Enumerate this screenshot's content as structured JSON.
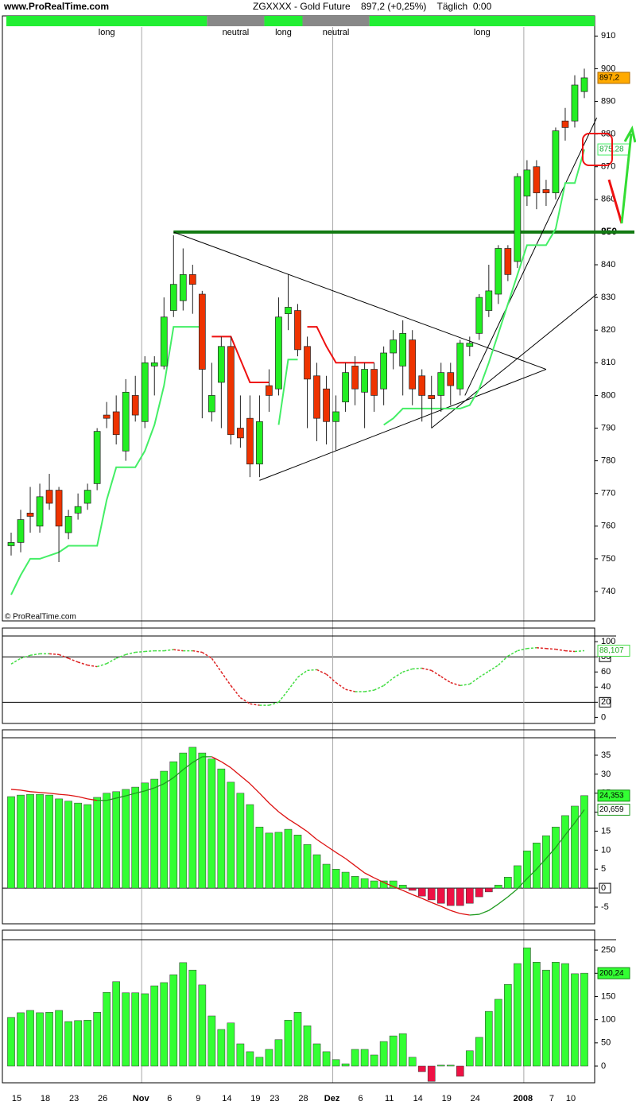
{
  "chart_data": [
    {
      "type": "candlestick",
      "source": "www.ProRealTime.com",
      "title": "ZGXXXX - Gold Future    897,2 (+0,25%)    Täglich  0:00",
      "watermark": "© ProRealTime.com",
      "up_color": "#22ee22",
      "down_color": "#ee3300",
      "tag_color": "#ffaa00",
      "open": [
        754,
        755,
        764,
        760,
        771,
        771,
        758,
        764,
        767,
        773,
        794,
        795,
        783,
        800,
        792,
        809,
        809,
        826,
        829,
        837,
        831,
        795,
        804,
        815,
        790,
        793,
        779,
        803,
        802,
        825,
        826,
        815,
        806,
        802,
        792,
        798,
        809,
        801,
        808,
        802,
        813,
        809,
        817,
        806,
        800,
        800,
        807,
        802,
        815,
        819,
        826,
        831,
        845,
        841,
        861,
        870,
        863,
        862,
        884,
        884,
        893
      ],
      "high": [
        758,
        765,
        772,
        773,
        776,
        772,
        765,
        770,
        773,
        790,
        798,
        800,
        805,
        806,
        812,
        812,
        830,
        849,
        845,
        840,
        832,
        810,
        818,
        818,
        800,
        800,
        800,
        808,
        830,
        837,
        828,
        818,
        810,
        806,
        800,
        810,
        812,
        810,
        810,
        815,
        820,
        823,
        820,
        808,
        806,
        810,
        810,
        817,
        818,
        831,
        840,
        846,
        846,
        868,
        872,
        872,
        866,
        882,
        888,
        898,
        900
      ],
      "low": [
        751,
        752,
        758,
        758,
        765,
        749,
        756,
        762,
        765,
        771,
        790,
        785,
        780,
        792,
        790,
        800,
        808,
        824,
        826,
        825,
        793,
        792,
        790,
        785,
        784,
        775,
        775,
        795,
        800,
        820,
        812,
        790,
        786,
        785,
        783,
        795,
        797,
        790,
        795,
        797,
        808,
        800,
        797,
        792,
        790,
        795,
        797,
        800,
        812,
        817,
        824,
        828,
        835,
        839,
        858,
        857,
        858,
        860,
        878,
        882,
        891
      ],
      "close": [
        755,
        762,
        763,
        769,
        767,
        760,
        763,
        766,
        771,
        789,
        793,
        788,
        801,
        794,
        810,
        810,
        824,
        834,
        837,
        834,
        808,
        800,
        815,
        788,
        787,
        779,
        792,
        800,
        824,
        827,
        814,
        805,
        793,
        792,
        795,
        807,
        802,
        808,
        800,
        813,
        817,
        819,
        802,
        800,
        799,
        807,
        803,
        816,
        816,
        830,
        832,
        845,
        837,
        867,
        869,
        862,
        862,
        881,
        882,
        895,
        897.2
      ],
      "value_labels": [
        null,
        null,
        null,
        null,
        null,
        null,
        null,
        null,
        null,
        null,
        null,
        null,
        null,
        null,
        null,
        null,
        null,
        null,
        null,
        null,
        null,
        null,
        null,
        null,
        null,
        null,
        null,
        null,
        null,
        null,
        null,
        null,
        null,
        null,
        null,
        null,
        null,
        null,
        null,
        null,
        null,
        null,
        null,
        null,
        null,
        null,
        null,
        null,
        null,
        null,
        null,
        null,
        null,
        null,
        null,
        null,
        null,
        null,
        null,
        null,
        "897,2"
      ],
      "series": [
        {
          "color": "#44ee66",
          "values": [
            739,
            745,
            750,
            750,
            751,
            752,
            754,
            754,
            754,
            754,
            768,
            778,
            778,
            778,
            783,
            791,
            803,
            821,
            821,
            821,
            821,
            null,
            null,
            null,
            null,
            null,
            null,
            null,
            791,
            811,
            811,
            null,
            null,
            null,
            null,
            null,
            null,
            null,
            null,
            791,
            793,
            796,
            796,
            796,
            796,
            796,
            796,
            796,
            797,
            802,
            810,
            819,
            828,
            837,
            846,
            846,
            846,
            851,
            865,
            865,
            875.28
          ],
          "value_labels": [
            null,
            null,
            null,
            null,
            null,
            null,
            null,
            null,
            null,
            null,
            null,
            null,
            null,
            null,
            null,
            null,
            null,
            null,
            null,
            null,
            null,
            null,
            null,
            null,
            null,
            null,
            null,
            null,
            null,
            null,
            null,
            null,
            null,
            null,
            null,
            null,
            null,
            null,
            null,
            null,
            null,
            null,
            null,
            null,
            null,
            null,
            null,
            null,
            null,
            null,
            null,
            null,
            null,
            null,
            null,
            null,
            null,
            null,
            null,
            null,
            "875,28"
          ]
        },
        {
          "color": "#ee1111",
          "values": [
            null,
            null,
            null,
            null,
            null,
            null,
            null,
            null,
            null,
            null,
            null,
            null,
            null,
            null,
            null,
            null,
            null,
            null,
            null,
            null,
            null,
            818,
            818,
            818,
            811,
            804,
            804,
            804,
            null,
            null,
            null,
            821,
            821,
            815,
            810,
            810,
            810,
            810,
            810,
            null,
            null,
            null,
            null,
            null,
            null,
            null,
            null,
            null,
            null,
            null,
            null,
            null,
            null,
            null,
            null,
            null,
            null,
            null,
            null,
            null,
            null
          ]
        }
      ],
      "lines": [
        {
          "x": [
            17,
            56
          ],
          "y": [
            850,
            808
          ]
        },
        {
          "x": [
            26,
            56
          ],
          "y": [
            774,
            808
          ]
        },
        {
          "x": [
            44,
            61.3
          ],
          "y": [
            790,
            831
          ]
        },
        {
          "x": [
            47.5,
            61.3
          ],
          "y": [
            800,
            885
          ]
        }
      ],
      "line_color": "#000000",
      "hline": {
        "value": 850,
        "from": 17,
        "color": "#127a12"
      },
      "regimes": [
        {
          "label": "long",
          "start": 0,
          "color": "#22ee33"
        },
        {
          "label": "neutral",
          "start": 21,
          "color": "#888888"
        },
        {
          "label": "long",
          "start": 27,
          "color": "#22ee33"
        },
        {
          "label": "neutral",
          "start": 31,
          "color": "#888888"
        },
        {
          "label": "long",
          "start": 38,
          "color": "#22ee33"
        }
      ],
      "ylim": [
        731,
        913
      ],
      "yticks": [
        740,
        750,
        760,
        770,
        780,
        790,
        800,
        810,
        820,
        830,
        840,
        850,
        860,
        870,
        880,
        890,
        900,
        910
      ]
    },
    {
      "type": "line",
      "dashed": true,
      "color_up": "#44dd44",
      "color_down": "#dd2222",
      "values": [
        70.5,
        78,
        82,
        84,
        84,
        83,
        78,
        73,
        69,
        67,
        71,
        78,
        83,
        86,
        87,
        88,
        88,
        89.5,
        88,
        88,
        86,
        78,
        60,
        42,
        26,
        18,
        16,
        16,
        20,
        36,
        53,
        62,
        63,
        57,
        46,
        37,
        34,
        34,
        36,
        42,
        52,
        60,
        64,
        65,
        62,
        54,
        46,
        42,
        44,
        53,
        61,
        69,
        81,
        88,
        91,
        92,
        91,
        90,
        88,
        87,
        88.107
      ],
      "value_labels": [
        null,
        null,
        null,
        null,
        null,
        null,
        null,
        null,
        null,
        null,
        null,
        null,
        null,
        null,
        null,
        null,
        null,
        null,
        null,
        null,
        null,
        null,
        null,
        null,
        null,
        null,
        null,
        null,
        null,
        null,
        null,
        null,
        null,
        null,
        null,
        null,
        null,
        null,
        null,
        null,
        null,
        null,
        null,
        null,
        null,
        null,
        null,
        null,
        null,
        null,
        null,
        null,
        null,
        null,
        null,
        null,
        null,
        null,
        null,
        null,
        "88,107"
      ],
      "hlines": [
        80,
        20
      ],
      "ylim": [
        -8,
        118
      ],
      "yticks": [
        0,
        20,
        40,
        60,
        80,
        100
      ]
    },
    {
      "type": "bar",
      "color_pos": "#33ff33",
      "color_neg": "#ee1144",
      "values": [
        24.1,
        24.5,
        24.7,
        24.7,
        24.5,
        23.5,
        22.9,
        22.4,
        22,
        23.9,
        25,
        25.4,
        26,
        26.6,
        27.7,
        28.7,
        30.8,
        33.3,
        35.6,
        37.1,
        35.6,
        34,
        31.4,
        27.9,
        25,
        22,
        16.1,
        14.5,
        14.7,
        15.5,
        14,
        11.5,
        8.8,
        6.3,
        5,
        4.2,
        3.1,
        2.5,
        1.9,
        1.9,
        1.9,
        0.8,
        -0.6,
        -2.1,
        -3.1,
        -4,
        -4.6,
        -4.6,
        -4,
        -2.3,
        -1,
        0.8,
        2.9,
        5.9,
        9.8,
        11.9,
        13.8,
        16.1,
        19.1,
        21.6,
        24.353
      ],
      "value_labels": [
        null,
        null,
        null,
        null,
        null,
        null,
        null,
        null,
        null,
        null,
        null,
        null,
        null,
        null,
        null,
        null,
        null,
        null,
        null,
        null,
        null,
        null,
        null,
        null,
        null,
        null,
        null,
        null,
        null,
        null,
        null,
        null,
        null,
        null,
        null,
        null,
        null,
        null,
        null,
        null,
        null,
        null,
        null,
        null,
        null,
        null,
        null,
        null,
        null,
        null,
        null,
        null,
        null,
        null,
        null,
        null,
        null,
        null,
        null,
        null,
        "24,353"
      ],
      "series": [
        {
          "color_up": "#1f9a1f",
          "color_down": "#dd1111",
          "values": [
            26,
            25.8,
            25.4,
            25.2,
            25,
            24.7,
            24.5,
            24.1,
            23.5,
            23.1,
            23.1,
            23.7,
            24.3,
            25,
            25.6,
            26.4,
            27.5,
            29.1,
            31.2,
            33.1,
            34.6,
            34.6,
            33.3,
            31.7,
            29.6,
            27.5,
            25,
            22.4,
            20.1,
            18.2,
            16.6,
            14.9,
            12.8,
            11.1,
            9.4,
            7.8,
            5.9,
            4,
            2.7,
            1.5,
            0.4,
            -0.6,
            -1.7,
            -2.7,
            -3.8,
            -4.8,
            -5.9,
            -6.7,
            -7.1,
            -6.9,
            -5.9,
            -4.2,
            -2.3,
            -0.2,
            2.5,
            5,
            7.8,
            10.7,
            14,
            17.2,
            20.659
          ],
          "value_labels": [
            null,
            null,
            null,
            null,
            null,
            null,
            null,
            null,
            null,
            null,
            null,
            null,
            null,
            null,
            null,
            null,
            null,
            null,
            null,
            null,
            null,
            null,
            null,
            null,
            null,
            null,
            null,
            null,
            null,
            null,
            null,
            null,
            null,
            null,
            null,
            null,
            null,
            null,
            null,
            null,
            null,
            null,
            null,
            null,
            null,
            null,
            null,
            null,
            null,
            null,
            null,
            null,
            null,
            null,
            null,
            null,
            null,
            null,
            null,
            null,
            "20,659"
          ]
        }
      ],
      "hlines": [
        0
      ],
      "ylim": [
        -9.4,
        39.6
      ],
      "yticks": [
        -5,
        0,
        5,
        10,
        15,
        20,
        25,
        30,
        35
      ]
    },
    {
      "type": "bar",
      "color_pos": "#33ff33",
      "color_neg": "#ee1144",
      "values": [
        105,
        115,
        120,
        115,
        116,
        120,
        96,
        98,
        99,
        116,
        159,
        182,
        158,
        158,
        156,
        173,
        180,
        197,
        223,
        207,
        175,
        108,
        79,
        93,
        48,
        31,
        19,
        36,
        57,
        99,
        116,
        87,
        48,
        31,
        14,
        5,
        36,
        36,
        24,
        53,
        65,
        70,
        19,
        -12,
        -33,
        2,
        2,
        -22,
        33,
        62,
        118,
        144,
        176,
        221,
        255,
        224,
        207,
        224,
        221,
        199,
        200.24
      ],
      "value_labels": [
        null,
        null,
        null,
        null,
        null,
        null,
        null,
        null,
        null,
        null,
        null,
        null,
        null,
        null,
        null,
        null,
        null,
        null,
        null,
        null,
        null,
        null,
        null,
        null,
        null,
        null,
        null,
        null,
        null,
        null,
        null,
        null,
        null,
        null,
        null,
        null,
        null,
        null,
        null,
        null,
        null,
        null,
        null,
        null,
        null,
        null,
        null,
        null,
        null,
        null,
        null,
        null,
        null,
        null,
        null,
        null,
        null,
        null,
        null,
        null,
        "200,24"
      ],
      "categories": [
        "15",
        null,
        null,
        "18",
        null,
        null,
        "23",
        null,
        null,
        "26",
        null,
        null,
        null,
        "Nov",
        null,
        null,
        "6",
        null,
        null,
        "9",
        null,
        null,
        "14",
        null,
        null,
        "19",
        null,
        "23",
        null,
        null,
        "28",
        null,
        null,
        "Dez",
        null,
        null,
        "6",
        null,
        null,
        "11",
        null,
        null,
        "14",
        null,
        null,
        "19",
        null,
        null,
        "24",
        null,
        null,
        null,
        null,
        "2008",
        null,
        null,
        "7",
        null,
        "10",
        null,
        null
      ],
      "ylim": [
        -36,
        293
      ],
      "yticks": [
        0,
        50,
        100,
        150,
        200,
        250
      ]
    }
  ]
}
